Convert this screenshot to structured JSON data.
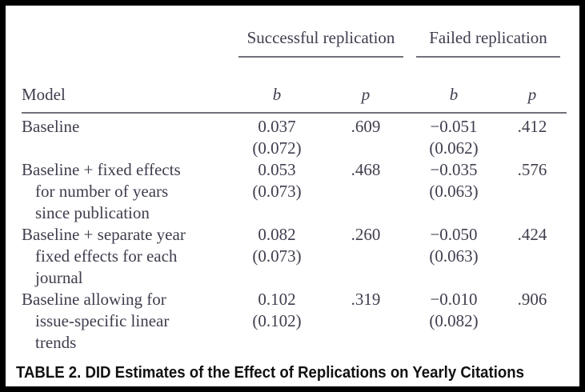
{
  "caption": "TABLE 2. DID Estimates of the Effect of Replications on Yearly Citations",
  "colors": {
    "text": "#3e3e4e",
    "rule": "#71717a",
    "caption": "#111111",
    "border": "#000000",
    "background": "#ffffff"
  },
  "table": {
    "group_headers": [
      "Successful replication",
      "Failed replication"
    ],
    "columns": [
      "Model",
      "b",
      "p",
      "b",
      "p"
    ],
    "rows": [
      {
        "model_lines": [
          "Baseline"
        ],
        "b_success": "0.037",
        "se_success": "(0.072)",
        "p_success": ".609",
        "b_failed": "−0.051",
        "se_failed": "(0.062)",
        "p_failed": ".412"
      },
      {
        "model_lines": [
          "Baseline + fixed effects",
          "for number of years",
          "since publication"
        ],
        "b_success": "0.053",
        "se_success": "(0.073)",
        "p_success": ".468",
        "b_failed": "−0.035",
        "se_failed": "(0.063)",
        "p_failed": ".576"
      },
      {
        "model_lines": [
          "Baseline + separate year",
          "fixed effects for each",
          "journal"
        ],
        "b_success": "0.082",
        "se_success": "(0.073)",
        "p_success": ".260",
        "b_failed": "−0.050",
        "se_failed": "(0.063)",
        "p_failed": ".424"
      },
      {
        "model_lines": [
          "Baseline allowing for",
          "issue-specific linear",
          "trends"
        ],
        "b_success": "0.102",
        "se_success": "(0.102)",
        "p_success": ".319",
        "b_failed": "−0.010",
        "se_failed": "(0.082)",
        "p_failed": ".906"
      }
    ]
  }
}
